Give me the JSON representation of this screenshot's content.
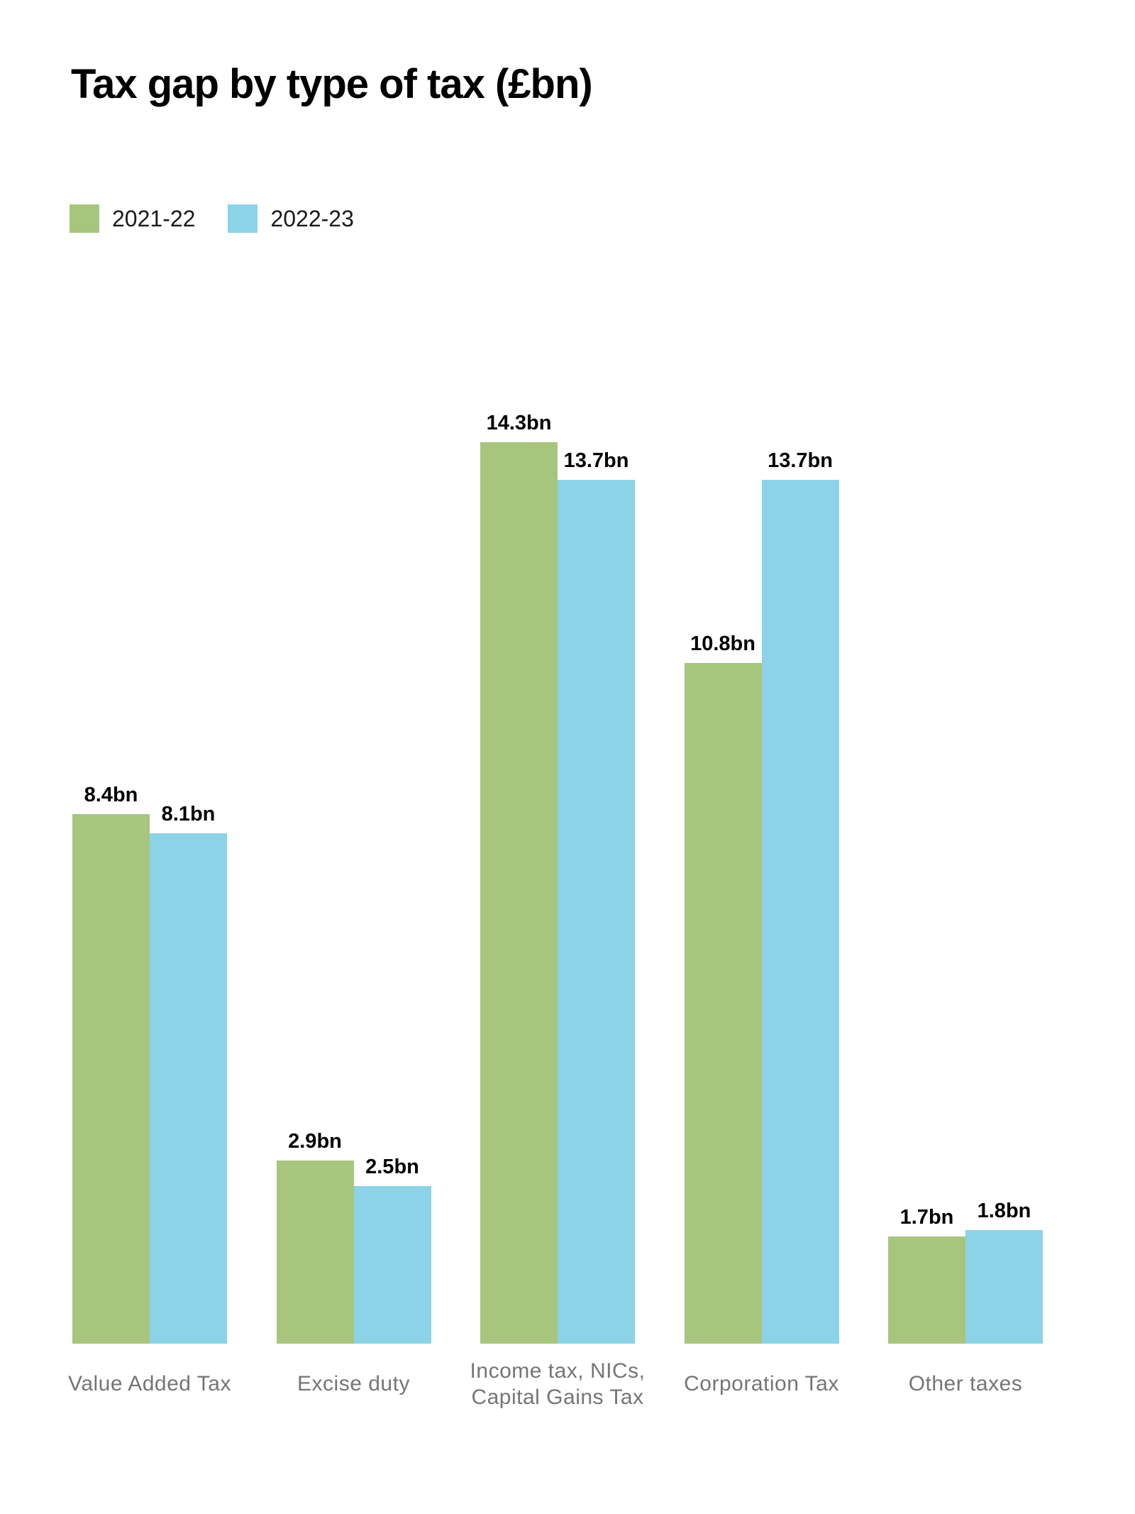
{
  "title": "Tax gap by type of tax (£bn)",
  "legend": [
    {
      "label": "2021-22",
      "color": "#a8c57e"
    },
    {
      "label": "2022-23",
      "color": "#8cd3e8"
    }
  ],
  "chart_data": {
    "type": "bar",
    "title": "Tax gap by type of tax (£bn)",
    "unit": "£bn",
    "categories": [
      "Value Added Tax",
      "Excise duty",
      "Income tax, NICs, Capital Gains Tax",
      "Corporation Tax",
      "Other taxes"
    ],
    "series": [
      {
        "name": "2021-22",
        "color": "#a8c57e",
        "values": [
          8.4,
          2.9,
          14.3,
          10.8,
          1.7
        ],
        "labels": [
          "8.4bn",
          "2.9bn",
          "14.3bn",
          "10.8bn",
          "1.7bn"
        ]
      },
      {
        "name": "2022-23",
        "color": "#8cd3e8",
        "values": [
          8.1,
          2.5,
          13.7,
          13.7,
          1.8
        ],
        "labels": [
          "8.1bn",
          "2.5bn",
          "13.7bn",
          "13.7bn",
          "1.8bn"
        ]
      }
    ],
    "xlabel": "",
    "ylabel": "",
    "ylim": [
      0,
      14.3
    ],
    "grid": false,
    "axes_visible": false,
    "value_labels_visible": true,
    "legend_position": "top-left"
  },
  "colors": {
    "series_2021_22": "#a8c57e",
    "series_2022_23": "#8cd3e8",
    "title_text": "#000000",
    "value_label_text": "#000000",
    "category_label_text": "#757575",
    "background": "#ffffff"
  }
}
